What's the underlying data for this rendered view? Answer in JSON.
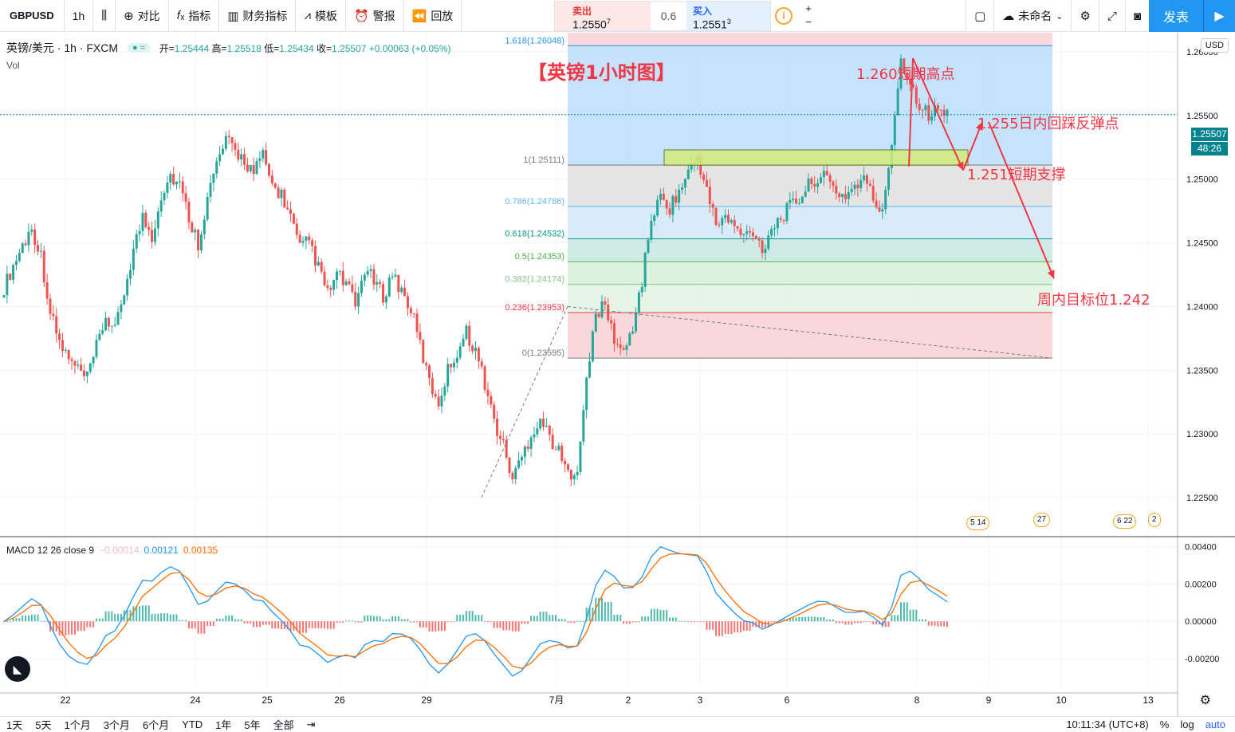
{
  "toolbar": {
    "symbol": "GBPUSD",
    "interval": "1h",
    "compare": "对比",
    "indicators": "指标",
    "financials": "财务指标",
    "templates": "模板",
    "alert": "警报",
    "replay": "回放",
    "sell_label": "卖出",
    "sell_price": "1.2550",
    "sell_sup": "7",
    "spread": "0.6",
    "buy_label": "买入",
    "buy_price": "1.2551",
    "buy_sup": "3",
    "layout_name": "未命名",
    "publish": "发表"
  },
  "legend": {
    "title": "英镑/美元 · 1h · FXCM",
    "open_label": "开=",
    "open": "1.25444",
    "high_label": "高=",
    "high": "1.25518",
    "low_label": "低=",
    "low": "1.25434",
    "close_label": "收=",
    "close": "1.25507",
    "change": "+0.00063 (+0.05%)",
    "vol": "Vol"
  },
  "currency": "USD",
  "current_price": "1.25507",
  "countdown": "48:26",
  "macd": {
    "label": "MACD 12 26 close 9",
    "hist": "−0.00014",
    "macd": "0.00121",
    "signal": "0.00135"
  },
  "bottom": {
    "ranges": [
      "1天",
      "5天",
      "1个月",
      "3个月",
      "6个月",
      "YTD",
      "1年",
      "5年",
      "全部"
    ],
    "time": "10:11:34 (UTC+8)",
    "percent": "%",
    "log": "log",
    "auto": "auto"
  },
  "events": [
    "5 14",
    "27",
    "6 22",
    "2"
  ],
  "chart_data": {
    "type": "candlestick",
    "title": "【英镑1小时图】",
    "price_axis": {
      "ticks": [
        1.26,
        1.255,
        1.25,
        1.245,
        1.24,
        1.235,
        1.23,
        1.225
      ],
      "tick_labels": [
        "1.26000",
        "1.25500",
        "1.25000",
        "1.24500",
        "1.24000",
        "1.23500",
        "1.23000",
        "1.22500"
      ],
      "range": [
        1.222,
        1.2615
      ]
    },
    "time_axis": {
      "labels": [
        "22",
        "24",
        "25",
        "26",
        "29",
        "7月",
        "2",
        "3",
        "6",
        "8",
        "9",
        "10",
        "13"
      ]
    },
    "macd_axis": {
      "ticks": [
        0.004,
        0.002,
        0.0,
        -0.002
      ],
      "tick_labels": [
        "0.00400",
        "0.00200",
        "0.00000",
        "-0.00200"
      ]
    },
    "fibonacci": [
      {
        "label": "1.618(1.26048)",
        "value": 1.26048,
        "color": "#2196f3"
      },
      {
        "label": "1(1.25111)",
        "value": 1.25111,
        "color": "#787b86"
      },
      {
        "label": "0.786(1.24786)",
        "value": 1.24786,
        "color": "#64b5f6"
      },
      {
        "label": "0.618(1.24532)",
        "value": 1.24532,
        "color": "#089981"
      },
      {
        "label": "0.5(1.24353)",
        "value": 1.24353,
        "color": "#4caf50"
      },
      {
        "label": "0.382(1.24174)",
        "value": 1.24174,
        "color": "#81c784"
      },
      {
        "label": "0.236(1.23953)",
        "value": 1.23953,
        "color": "#f23645"
      },
      {
        "label": "0(1.23595)",
        "value": 1.23595,
        "color": "#787b86"
      }
    ],
    "annotations": [
      {
        "text": "1.260短期高点"
      },
      {
        "text": "1.255日内回踩反弹点"
      },
      {
        "text": "1.251短期支撑"
      },
      {
        "text": "周内目标位1.242"
      }
    ],
    "support_zone": [
      1.2511,
      1.2523
    ],
    "series_close": [
      1.2415,
      1.2432,
      1.2448,
      1.2461,
      1.244,
      1.2395,
      1.2372,
      1.2358,
      1.235,
      1.2343,
      1.2368,
      1.2392,
      1.238,
      1.2412,
      1.2445,
      1.247,
      1.2455,
      1.2488,
      1.2503,
      1.2495,
      1.247,
      1.245,
      1.2485,
      1.2512,
      1.253,
      1.2522,
      1.2515,
      1.2505,
      1.2518,
      1.2495,
      1.2488,
      1.247,
      1.2445,
      1.2452,
      1.243,
      1.241,
      1.2425,
      1.2418,
      1.24,
      1.243,
      1.242,
      1.2408,
      1.2426,
      1.2412,
      1.2398,
      1.237,
      1.234,
      1.2325,
      1.235,
      1.2365,
      1.238,
      1.2365,
      1.234,
      1.231,
      1.229,
      1.2265,
      1.2282,
      1.23,
      1.2312,
      1.2298,
      1.2285,
      1.2268,
      1.2275,
      1.234,
      1.2395,
      1.24,
      1.2375,
      1.2362,
      1.2385,
      1.242,
      1.247,
      1.2485,
      1.2478,
      1.249,
      1.2505,
      1.2518,
      1.249,
      1.2465,
      1.247,
      1.2462,
      1.2455,
      1.246,
      1.2445,
      1.2462,
      1.247,
      1.2478,
      1.2485,
      1.2495,
      1.2502,
      1.25,
      1.249,
      1.2487,
      1.2495,
      1.25,
      1.2485,
      1.2472,
      1.253,
      1.2595,
      1.2575,
      1.256,
      1.255,
      1.2555,
      1.2551
    ]
  }
}
